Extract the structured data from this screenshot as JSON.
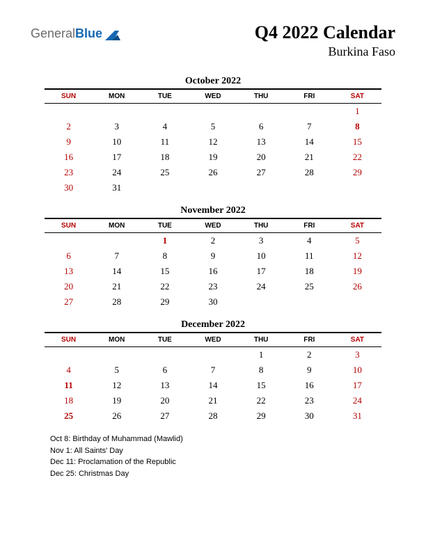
{
  "logo": {
    "text1": "General",
    "text2": "Blue",
    "shape_color": "#1668b3"
  },
  "header": {
    "title": "Q4 2022 Calendar",
    "subtitle": "Burkina Faso"
  },
  "day_headers": [
    "SUN",
    "MON",
    "TUE",
    "WED",
    "THU",
    "FRI",
    "SAT"
  ],
  "colors": {
    "weekend": "#b30000",
    "holiday": "#b30000",
    "text": "#000000",
    "rule": "#000000",
    "background": "#ffffff"
  },
  "months": [
    {
      "title": "October 2022",
      "weeks": [
        [
          "",
          "",
          "",
          "",
          "",
          "",
          "1"
        ],
        [
          "2",
          "3",
          "4",
          "5",
          "6",
          "7",
          "8"
        ],
        [
          "9",
          "10",
          "11",
          "12",
          "13",
          "14",
          "15"
        ],
        [
          "16",
          "17",
          "18",
          "19",
          "20",
          "21",
          "22"
        ],
        [
          "23",
          "24",
          "25",
          "26",
          "27",
          "28",
          "29"
        ],
        [
          "30",
          "31",
          "",
          "",
          "",
          "",
          ""
        ]
      ],
      "holidays": [
        "8"
      ]
    },
    {
      "title": "November 2022",
      "weeks": [
        [
          "",
          "",
          "1",
          "2",
          "3",
          "4",
          "5"
        ],
        [
          "6",
          "7",
          "8",
          "9",
          "10",
          "11",
          "12"
        ],
        [
          "13",
          "14",
          "15",
          "16",
          "17",
          "18",
          "19"
        ],
        [
          "20",
          "21",
          "22",
          "23",
          "24",
          "25",
          "26"
        ],
        [
          "27",
          "28",
          "29",
          "30",
          "",
          "",
          ""
        ]
      ],
      "holidays": [
        "1"
      ]
    },
    {
      "title": "December 2022",
      "weeks": [
        [
          "",
          "",
          "",
          "",
          "1",
          "2",
          "3"
        ],
        [
          "4",
          "5",
          "6",
          "7",
          "8",
          "9",
          "10"
        ],
        [
          "11",
          "12",
          "13",
          "14",
          "15",
          "16",
          "17"
        ],
        [
          "18",
          "19",
          "20",
          "21",
          "22",
          "23",
          "24"
        ],
        [
          "25",
          "26",
          "27",
          "28",
          "29",
          "30",
          "31"
        ]
      ],
      "holidays": [
        "11",
        "25"
      ]
    }
  ],
  "holiday_list": [
    "Oct 8: Birthday of Muhammad (Mawlid)",
    "Nov 1: All Saints' Day",
    "Dec 11: Proclamation of the Republic",
    "Dec 25: Christmas Day"
  ]
}
